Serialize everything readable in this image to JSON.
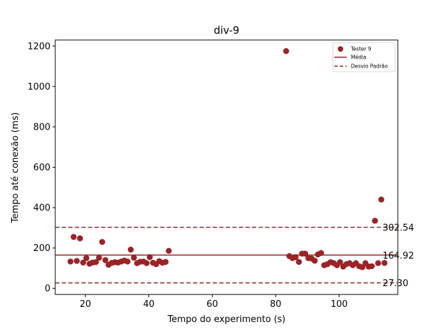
{
  "chart_data": {
    "type": "scatter",
    "title": "div-9",
    "xlabel": "Tempo do experimento (s)",
    "ylabel": "Tempo até conexão (ms)",
    "xlim": [
      10.5,
      118.5
    ],
    "ylim": [
      -30,
      1230
    ],
    "xticks": [
      20,
      40,
      60,
      80,
      100
    ],
    "yticks": [
      0,
      200,
      400,
      600,
      800,
      1000,
      1200
    ],
    "grid": false,
    "legend_position": "top-right",
    "colors": {
      "series": "#9b2226"
    },
    "series": [
      {
        "name": "Tester 9",
        "x": [
          15.3,
          16.3,
          17.3,
          18.3,
          19.3,
          20.3,
          21.3,
          22.3,
          23.3,
          24.3,
          25.3,
          26.3,
          27.3,
          28.3,
          29.3,
          30.3,
          31.3,
          32.3,
          33.3,
          34.3,
          35.3,
          36.3,
          37.3,
          38.3,
          39.3,
          40.3,
          41.3,
          42.3,
          43.3,
          44.3,
          45.3,
          46.3,
          83.3,
          84.3,
          85.3,
          86.3,
          87.3,
          88.3,
          89.3,
          90.3,
          91.3,
          92.3,
          93.3,
          94.3,
          95.3,
          96.3,
          97.3,
          98.3,
          99.3,
          100.3,
          101.3,
          102.3,
          103.3,
          104.3,
          105.3,
          106.3,
          107.3,
          108.3,
          109.3,
          110.3,
          111.3,
          112.3,
          113.3,
          114.3
        ],
        "y": [
          133,
          255,
          136,
          248,
          128,
          150,
          122,
          128,
          130,
          152,
          230,
          140,
          117,
          126,
          130,
          128,
          133,
          138,
          133,
          192,
          152,
          125,
          132,
          133,
          125,
          155,
          127,
          120,
          135,
          127,
          131,
          186,
          1175,
          160,
          150,
          155,
          131,
          172,
          172,
          150,
          148,
          137,
          168,
          175,
          115,
          120,
          130,
          125,
          115,
          130,
          108,
          120,
          125,
          115,
          125,
          110,
          105,
          125,
          108,
          110,
          335,
          125,
          440,
          126
        ]
      }
    ],
    "reference_lines": [
      {
        "name": "Média",
        "value": 164.92,
        "label": "164.92",
        "style": "solid"
      },
      {
        "name": "Desvio Padrão",
        "value": 302.54,
        "label": "302.54",
        "style": "dashed"
      },
      {
        "value": 27.3,
        "label": "27.30",
        "style": "dashed"
      }
    ]
  }
}
